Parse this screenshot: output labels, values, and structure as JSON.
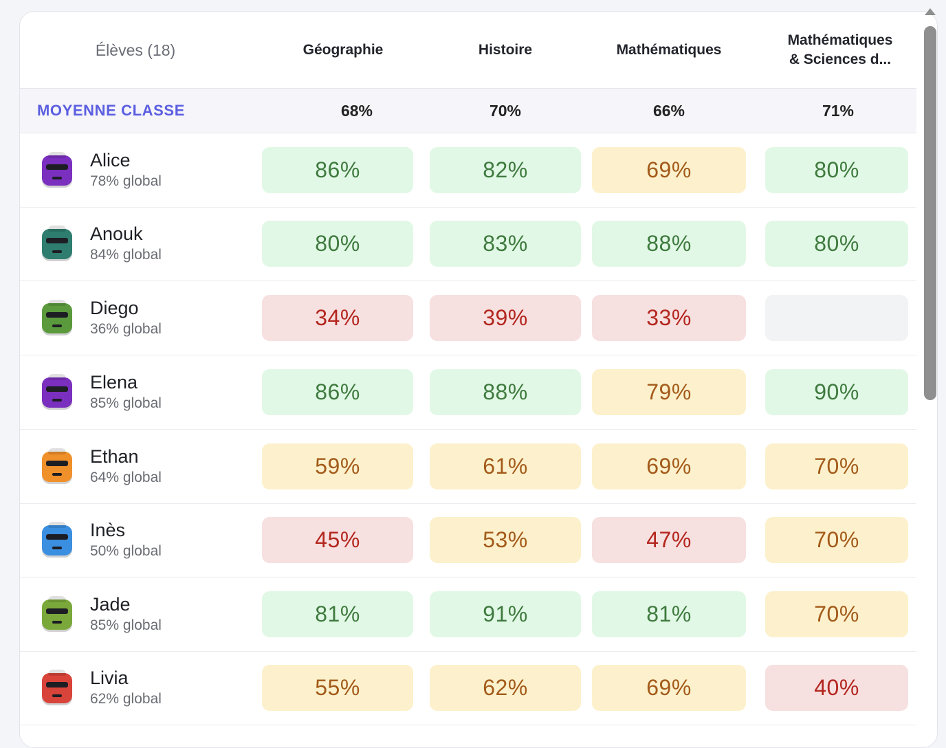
{
  "header": {
    "students": "Élèves (18)",
    "subjects": [
      "Géographie",
      "Histoire",
      "Mathématiques",
      "Mathématiques\n& Sciences d..."
    ]
  },
  "average": {
    "label": "MOYENNE CLASSE",
    "values": [
      "68%",
      "70%",
      "66%",
      "71%"
    ]
  },
  "colors": {
    "green": "#e2f8e6",
    "yellow": "#fcf1cc",
    "red": "#f7e0e0",
    "empty": "#f2f3f4",
    "accent": "#5b5ee0"
  },
  "students": [
    {
      "name": "Alice",
      "global": "78% global",
      "avatar_color": "#7b2fbf",
      "avatar_icon": "sunglasses-robot-icon",
      "scores": [
        {
          "value": "86%",
          "level": "green"
        },
        {
          "value": "82%",
          "level": "green"
        },
        {
          "value": "69%",
          "level": "yellow"
        },
        {
          "value": "80%",
          "level": "green"
        }
      ]
    },
    {
      "name": "Anouk",
      "global": "84% global",
      "avatar_color": "#2e7d6f",
      "avatar_icon": "glasses-robot-icon",
      "scores": [
        {
          "value": "80%",
          "level": "green"
        },
        {
          "value": "83%",
          "level": "green"
        },
        {
          "value": "88%",
          "level": "green"
        },
        {
          "value": "80%",
          "level": "green"
        }
      ]
    },
    {
      "name": "Diego",
      "global": "36% global",
      "avatar_color": "#5a9a3c",
      "avatar_icon": "beret-robot-icon",
      "scores": [
        {
          "value": "34%",
          "level": "red"
        },
        {
          "value": "39%",
          "level": "red"
        },
        {
          "value": "33%",
          "level": "red"
        },
        {
          "value": "",
          "level": "empty"
        }
      ]
    },
    {
      "name": "Elena",
      "global": "85% global",
      "avatar_color": "#7b2fbf",
      "avatar_icon": "cap-robot-icon",
      "scores": [
        {
          "value": "86%",
          "level": "green"
        },
        {
          "value": "88%",
          "level": "green"
        },
        {
          "value": "79%",
          "level": "yellow"
        },
        {
          "value": "90%",
          "level": "green"
        }
      ]
    },
    {
      "name": "Ethan",
      "global": "64% global",
      "avatar_color": "#f0902a",
      "avatar_icon": "eyepatch-robot-icon",
      "scores": [
        {
          "value": "59%",
          "level": "yellow"
        },
        {
          "value": "61%",
          "level": "yellow"
        },
        {
          "value": "69%",
          "level": "yellow"
        },
        {
          "value": "70%",
          "level": "yellow"
        }
      ]
    },
    {
      "name": "Inès",
      "global": "50% global",
      "avatar_color": "#3b8fe0",
      "avatar_icon": "visor-robot-icon",
      "scores": [
        {
          "value": "45%",
          "level": "red"
        },
        {
          "value": "53%",
          "level": "yellow"
        },
        {
          "value": "47%",
          "level": "red"
        },
        {
          "value": "70%",
          "level": "yellow"
        }
      ]
    },
    {
      "name": "Jade",
      "global": "85% global",
      "avatar_color": "#7aa83a",
      "avatar_icon": "mask-robot-icon",
      "scores": [
        {
          "value": "81%",
          "level": "green"
        },
        {
          "value": "91%",
          "level": "green"
        },
        {
          "value": "81%",
          "level": "green"
        },
        {
          "value": "70%",
          "level": "yellow"
        }
      ]
    },
    {
      "name": "Livia",
      "global": "62% global",
      "avatar_color": "#d9443a",
      "avatar_icon": "heart-eyes-robot-icon",
      "scores": [
        {
          "value": "55%",
          "level": "yellow"
        },
        {
          "value": "62%",
          "level": "yellow"
        },
        {
          "value": "69%",
          "level": "yellow"
        },
        {
          "value": "40%",
          "level": "red"
        }
      ]
    }
  ]
}
